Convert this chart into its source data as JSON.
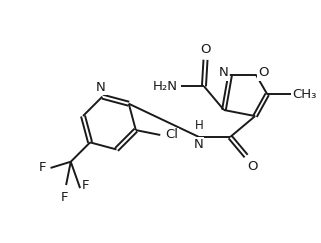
{
  "background_color": "#ffffff",
  "line_color": "#1a1a1a",
  "line_width": 1.4,
  "font_size": 9.5,
  "figsize": [
    3.21,
    2.43
  ],
  "dpi": 100,
  "xlim": [
    0.0,
    10.0
  ],
  "ylim": [
    0.5,
    8.0
  ]
}
